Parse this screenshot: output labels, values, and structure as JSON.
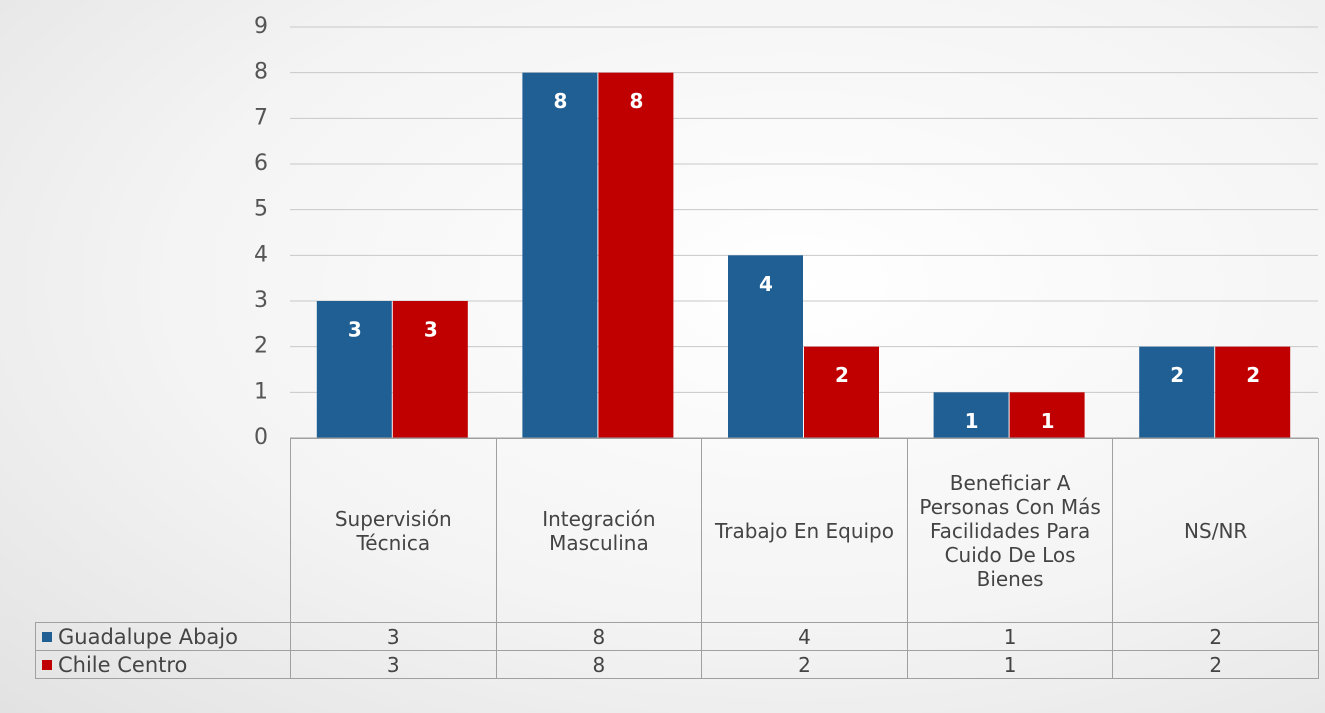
{
  "chart_data": {
    "type": "bar",
    "categories": [
      "Supervisión Técnica",
      "Integración Masculina",
      "Trabajo En Equipo",
      "Beneficiar A Personas Con Más Facilidades Para Cuido De Los Bienes",
      "NS/NR"
    ],
    "series": [
      {
        "name": "Guadalupe Abajo",
        "color": "#1f5f94",
        "values": [
          3,
          8,
          4,
          1,
          2
        ]
      },
      {
        "name": "Chile Centro",
        "color": "#c00000",
        "values": [
          3,
          8,
          2,
          1,
          2
        ]
      }
    ],
    "ylim": [
      0,
      9
    ],
    "yticks": [
      0,
      1,
      2,
      3,
      4,
      5,
      6,
      7,
      8,
      9
    ],
    "grid": true,
    "data_table": true
  }
}
